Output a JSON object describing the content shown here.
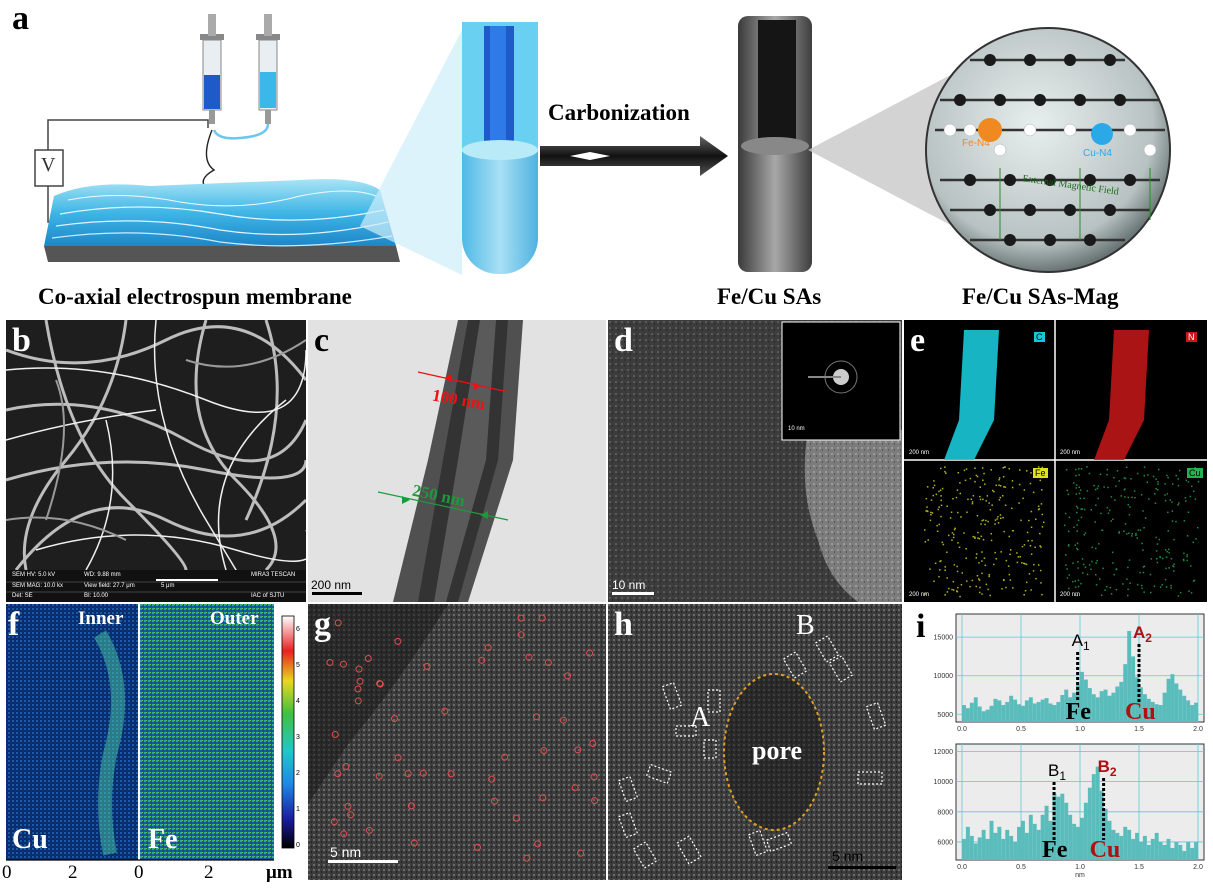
{
  "panel_labels": {
    "a": "a",
    "b": "b",
    "c": "c",
    "d": "d",
    "e": "e",
    "f": "f",
    "g": "g",
    "h": "h",
    "i": "i"
  },
  "panel_a": {
    "voltage_symbol": "V",
    "arrow_label": "Carbonization",
    "caption_membrane": "Co-axial electrospun membrane",
    "caption_fecu": "Fe/Cu SAs",
    "caption_mag": "Fe/Cu SAs-Mag",
    "site_fe": "Fe-N4",
    "site_cu": "Cu-N4",
    "field_text": "External Magnetic Field"
  },
  "panel_b": {
    "sem_hv": "SEM HV: 5.0 kV",
    "wd": "WD: 9.88 mm",
    "brand": "MIRA3 TESCAN",
    "sem_mag": "SEM MAG: 10.0 kx",
    "view_field": "View field: 27.7 μm",
    "scale": "5 μm",
    "det": "Det: SE",
    "bi": "BI: 10.00",
    "inst": "IAC of SJTU"
  },
  "panel_c": {
    "dim_inner": "100 nm",
    "dim_outer": "250 nm",
    "scale": "200 nm"
  },
  "panel_d": {
    "scale": "10 nm",
    "inset_scale": "10 nm"
  },
  "panel_e": {
    "maps": [
      {
        "element": "C",
        "scale": "200 nm",
        "color": "#19c8d8"
      },
      {
        "element": "N",
        "scale": "200 nm",
        "color": "#c81818"
      },
      {
        "element": "Fe",
        "scale": "200 nm",
        "color": "#e0e020"
      },
      {
        "element": "Cu",
        "scale": "200 nm",
        "color": "#28b050"
      }
    ]
  },
  "panel_f": {
    "inner": "Inner",
    "outer": "Outer",
    "cu": "Cu",
    "fe": "Fe",
    "unit": "μm",
    "x_ticks_left": [
      "0",
      "2",
      "0"
    ],
    "x_ticks_right": [
      "2"
    ],
    "colorbar_ticks": [
      "0",
      "1",
      "2",
      "3",
      "4",
      "5",
      "6"
    ]
  },
  "panel_g": {
    "scale": "5 nm"
  },
  "panel_h": {
    "label_a": "A",
    "label_b": "B",
    "pore": "pore",
    "scale": "5 nm"
  },
  "chart_data": [
    {
      "type": "bar",
      "xlim": [
        0,
        2.0
      ],
      "ylim": [
        4000,
        18000
      ],
      "x_ticks": [
        "0.0",
        "0.5",
        "1.0",
        "1.5",
        "2.0"
      ],
      "y_ticks": [
        "5000",
        "10000",
        "15000"
      ],
      "peaks": [
        {
          "label": "A",
          "sub": "1",
          "element": "Fe",
          "x": 0.98
        },
        {
          "label": "A",
          "sub": "2",
          "element": "Cu",
          "x": 1.5
        }
      ],
      "values": [
        6200,
        5800,
        6500,
        7200,
        6000,
        5400,
        5600,
        6100,
        7000,
        6800,
        6200,
        6600,
        7400,
        6900,
        6300,
        6100,
        6800,
        7200,
        6400,
        6600,
        6900,
        7100,
        6400,
        6200,
        6600,
        7500,
        8200,
        7200,
        7800,
        8800,
        10500,
        9500,
        8400,
        7600,
        7200,
        8000,
        8200,
        7400,
        7800,
        8600,
        9200,
        11500,
        15800,
        12500,
        9800,
        8500,
        7600,
        7000,
        6600,
        6300,
        6200,
        7800,
        9600,
        10200,
        9000,
        8200,
        7400,
        6800,
        6200,
        6500
      ],
      "color": "#5bbcbc"
    },
    {
      "type": "bar",
      "xlim": [
        0,
        2.0
      ],
      "ylim": [
        4800,
        12500
      ],
      "x_ticks": [
        "0.0",
        "0.5",
        "1.0",
        "1.5",
        "2.0"
      ],
      "y_ticks": [
        "6000",
        "8000",
        "10000",
        "12000"
      ],
      "xlabel": "nm",
      "peaks": [
        {
          "label": "B",
          "sub": "1",
          "element": "Fe",
          "x": 0.78
        },
        {
          "label": "B",
          "sub": "2",
          "element": "Cu",
          "x": 1.2
        }
      ],
      "values": [
        6200,
        7000,
        6400,
        5900,
        6300,
        6800,
        6200,
        7400,
        6600,
        7000,
        6200,
        6800,
        6400,
        6000,
        7000,
        7400,
        6600,
        7800,
        7200,
        6800,
        7800,
        8400,
        7400,
        9200,
        9000,
        9200,
        8600,
        7800,
        7200,
        7000,
        7600,
        8600,
        9600,
        10500,
        11000,
        9400,
        8200,
        7400,
        6800,
        6600,
        6400,
        7000,
        6800,
        6200,
        6600,
        6000,
        6400,
        5800,
        6200,
        6600,
        6000,
        5800,
        6200,
        5600,
        6000,
        5800,
        5400,
        6000,
        5600,
        6000
      ],
      "color": "#5bbcbc"
    }
  ],
  "panel_i": {
    "fe": "Fe",
    "cu": "Cu"
  }
}
